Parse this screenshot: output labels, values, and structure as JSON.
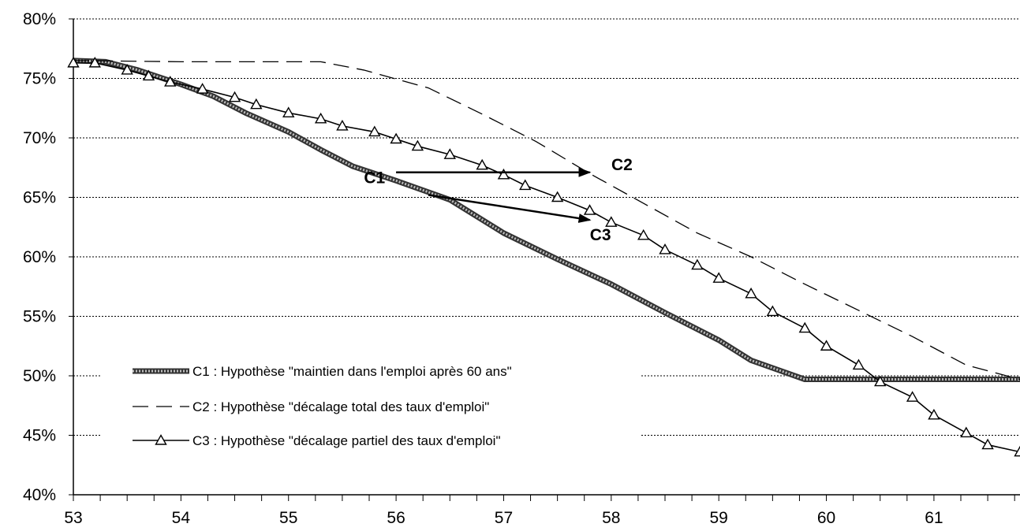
{
  "chart_data": {
    "type": "line",
    "title": "",
    "xlabel": "",
    "ylabel": "",
    "xlim": [
      53,
      61.8
    ],
    "ylim": [
      0.4,
      0.8
    ],
    "x_ticks": [
      "53",
      "54",
      "55",
      "56",
      "57",
      "58",
      "59",
      "60",
      "61"
    ],
    "y_ticks": [
      "40%",
      "45%",
      "50%",
      "55%",
      "60%",
      "65%",
      "70%",
      "75%",
      "80%"
    ],
    "grid": "horizontal dashed",
    "legend_position": "bottom-left",
    "series": [
      {
        "name": "C1 : Hypothèse \"maintien dans l'emploi après 60 ans\"",
        "style": "thick hatched",
        "color": "#555555",
        "points": [
          [
            53,
            0.765
          ],
          [
            53.3,
            0.764
          ],
          [
            53.6,
            0.757
          ],
          [
            54.0,
            0.745
          ],
          [
            54.3,
            0.735
          ],
          [
            54.6,
            0.721
          ],
          [
            55.0,
            0.705
          ],
          [
            55.3,
            0.69
          ],
          [
            55.6,
            0.676
          ],
          [
            56.0,
            0.664
          ],
          [
            56.5,
            0.648
          ],
          [
            57.0,
            0.62
          ],
          [
            57.5,
            0.598
          ],
          [
            58.0,
            0.577
          ],
          [
            58.5,
            0.553
          ],
          [
            59.0,
            0.53
          ],
          [
            59.3,
            0.513
          ],
          [
            59.8,
            0.497
          ],
          [
            61.8,
            0.497
          ]
        ]
      },
      {
        "name": "C2 : Hypothèse \"décalage total des taux d'emploi\"",
        "style": "dashed",
        "color": "#000000",
        "points": [
          [
            53,
            0.765
          ],
          [
            54.0,
            0.764
          ],
          [
            55.3,
            0.764
          ],
          [
            55.7,
            0.757
          ],
          [
            56.3,
            0.742
          ],
          [
            56.8,
            0.72
          ],
          [
            57.3,
            0.697
          ],
          [
            57.8,
            0.67
          ],
          [
            58.3,
            0.645
          ],
          [
            58.8,
            0.62
          ],
          [
            59.3,
            0.6
          ],
          [
            59.8,
            0.577
          ],
          [
            60.3,
            0.555
          ],
          [
            60.8,
            0.533
          ],
          [
            61.3,
            0.509
          ],
          [
            61.8,
            0.497
          ]
        ]
      },
      {
        "name": "C3 : Hypothèse \"décalage partiel des taux d'emploi\"",
        "style": "line with open triangles",
        "color": "#000000",
        "points": [
          [
            53.0,
            0.763
          ],
          [
            53.2,
            0.763
          ],
          [
            53.5,
            0.757
          ],
          [
            53.7,
            0.752
          ],
          [
            53.9,
            0.747
          ],
          [
            54.2,
            0.741
          ],
          [
            54.5,
            0.734
          ],
          [
            54.7,
            0.728
          ],
          [
            55.0,
            0.721
          ],
          [
            55.3,
            0.716
          ],
          [
            55.5,
            0.71
          ],
          [
            55.8,
            0.705
          ],
          [
            56.0,
            0.699
          ],
          [
            56.2,
            0.693
          ],
          [
            56.5,
            0.686
          ],
          [
            56.8,
            0.677
          ],
          [
            57.0,
            0.669
          ],
          [
            57.2,
            0.66
          ],
          [
            57.5,
            0.65
          ],
          [
            57.8,
            0.639
          ],
          [
            58.0,
            0.629
          ],
          [
            58.3,
            0.618
          ],
          [
            58.5,
            0.606
          ],
          [
            58.8,
            0.593
          ],
          [
            59.0,
            0.582
          ],
          [
            59.3,
            0.569
          ],
          [
            59.5,
            0.554
          ],
          [
            59.8,
            0.54
          ],
          [
            60.0,
            0.525
          ],
          [
            60.3,
            0.509
          ],
          [
            60.5,
            0.495
          ],
          [
            60.8,
            0.482
          ],
          [
            61.0,
            0.467
          ],
          [
            61.3,
            0.452
          ],
          [
            61.5,
            0.442
          ],
          [
            61.8,
            0.436
          ]
        ]
      }
    ],
    "annotations": [
      {
        "text": "C1",
        "x": 55.8,
        "y": 0.662
      },
      {
        "text": "C2",
        "x": 58.1,
        "y": 0.673
      },
      {
        "text": "C3",
        "x": 57.9,
        "y": 0.614
      }
    ],
    "arrows": [
      {
        "from": [
          56.0,
          0.671
        ],
        "to": [
          57.8,
          0.671
        ]
      },
      {
        "from": [
          56.3,
          0.652
        ],
        "to": [
          57.8,
          0.631
        ]
      }
    ]
  }
}
